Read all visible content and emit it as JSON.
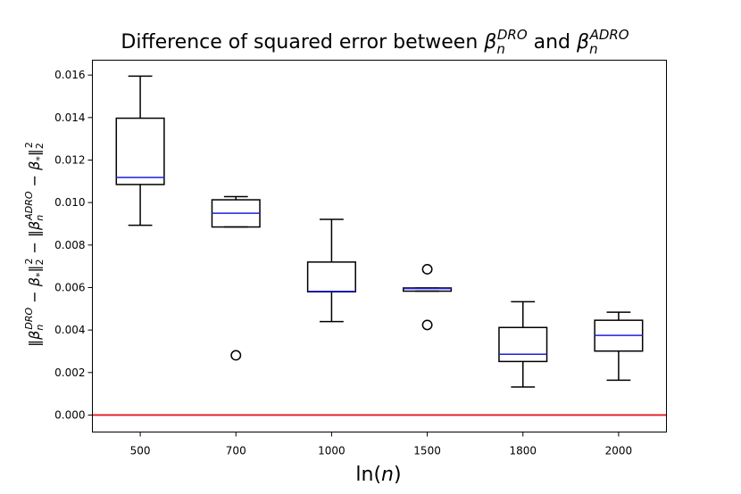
{
  "chart_data": {
    "type": "box",
    "title_parts": [
      "Difference of squared error between ",
      "β",
      "n",
      "DRO",
      " and ",
      "β",
      "n",
      "ADRO"
    ],
    "xlabel_parts": [
      "ln(",
      "n",
      ")"
    ],
    "ylabel_parts": [
      "‖β",
      "n",
      "DRO",
      " − β",
      "*",
      "‖",
      "2",
      "2",
      " − ‖β",
      "n",
      "ADRO",
      " − β",
      "*",
      "‖",
      "2",
      "2"
    ],
    "categories": [
      "500",
      "700",
      "1000",
      "1500",
      "1800",
      "2000"
    ],
    "boxes": [
      {
        "whisker_low": 0.00893,
        "q1": 0.01085,
        "median": 0.01118,
        "q3": 0.01397,
        "whisker_high": 0.01595,
        "outliers": []
      },
      {
        "whisker_low": 0.00885,
        "q1": 0.00885,
        "median": 0.0095,
        "q3": 0.01013,
        "whisker_high": 0.01028,
        "outliers": [
          0.00281
        ]
      },
      {
        "whisker_low": 0.0044,
        "q1": 0.0058,
        "median": 0.00582,
        "q3": 0.0072,
        "whisker_high": 0.00921,
        "outliers": []
      },
      {
        "whisker_low": 0.00583,
        "q1": 0.00583,
        "median": 0.00595,
        "q3": 0.00598,
        "whisker_high": 0.00598,
        "outliers": [
          0.00686,
          0.00424
        ]
      },
      {
        "whisker_low": 0.00132,
        "q1": 0.00252,
        "median": 0.00286,
        "q3": 0.00412,
        "whisker_high": 0.00533,
        "outliers": []
      },
      {
        "whisker_low": 0.00164,
        "q1": 0.00301,
        "median": 0.00375,
        "q3": 0.00446,
        "whisker_high": 0.00484,
        "outliers": []
      }
    ],
    "ylim": [
      -0.0008,
      0.0167
    ],
    "yticks": [
      0.0,
      0.002,
      0.004,
      0.006,
      0.008,
      0.01,
      0.012,
      0.014,
      0.016
    ],
    "ytick_labels": [
      "0.000",
      "0.002",
      "0.004",
      "0.006",
      "0.008",
      "0.010",
      "0.012",
      "0.014",
      "0.016"
    ],
    "reference_line": {
      "y": 0.0,
      "color": "#e41a1c"
    },
    "box_color": "#000000",
    "median_color": "#1f1fdc",
    "grid": false
  }
}
